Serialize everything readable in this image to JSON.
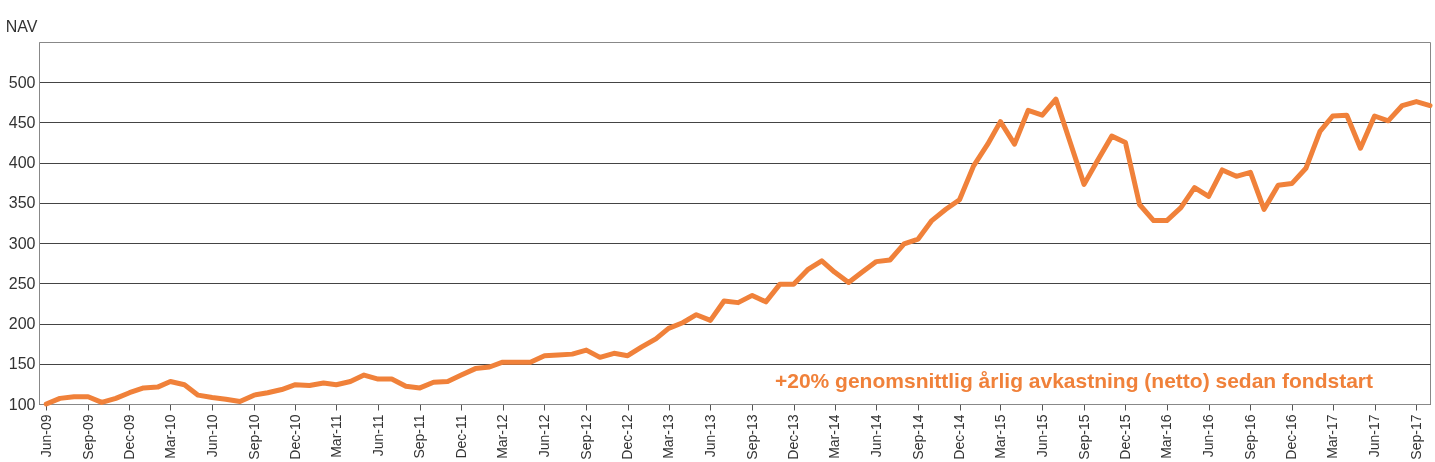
{
  "chart_data": {
    "type": "line",
    "ylabel": "NAV",
    "annotations": [
      "+20% genomsnittlig årlig avkastning (netto) sedan fondstart"
    ],
    "x": [
      "2009-06",
      "2009-07",
      "2009-08",
      "2009-09",
      "2009-10",
      "2009-11",
      "2009-12",
      "2010-01",
      "2010-02",
      "2010-03",
      "2010-04",
      "2010-05",
      "2010-06",
      "2010-07",
      "2010-08",
      "2010-09",
      "2010-10",
      "2010-11",
      "2010-12",
      "2011-01",
      "2011-02",
      "2011-03",
      "2011-04",
      "2011-05",
      "2011-06",
      "2011-07",
      "2011-08",
      "2011-09",
      "2011-10",
      "2011-11",
      "2011-12",
      "2012-01",
      "2012-02",
      "2012-03",
      "2012-04",
      "2012-05",
      "2012-06",
      "2012-07",
      "2012-08",
      "2012-09",
      "2012-10",
      "2012-11",
      "2012-12",
      "2013-01",
      "2013-02",
      "2013-03",
      "2013-04",
      "2013-05",
      "2013-06",
      "2013-07",
      "2013-08",
      "2013-09",
      "2013-10",
      "2013-11",
      "2013-12",
      "2014-01",
      "2014-02",
      "2014-03",
      "2014-04",
      "2014-05",
      "2014-06",
      "2014-07",
      "2014-08",
      "2014-09",
      "2014-10",
      "2014-11",
      "2014-12",
      "2015-01",
      "2015-02",
      "2015-03",
      "2015-04",
      "2015-05",
      "2015-06",
      "2015-07",
      "2015-08",
      "2015-09",
      "2015-10",
      "2015-11",
      "2015-12",
      "2016-01",
      "2016-02",
      "2016-03",
      "2016-04",
      "2016-05",
      "2016-06",
      "2016-07",
      "2016-08",
      "2016-09",
      "2016-10",
      "2016-11",
      "2016-12",
      "2017-01",
      "2017-02",
      "2017-03",
      "2017-04",
      "2017-05",
      "2017-06",
      "2017-07",
      "2017-08",
      "2017-09",
      "2017-10"
    ],
    "series": [
      {
        "color": "#f0813a",
        "values": [
          100,
          107,
          109,
          109,
          102,
          107,
          114,
          120,
          121,
          128,
          124,
          111,
          108,
          106,
          103,
          111,
          114,
          118,
          124,
          123,
          126,
          124,
          128,
          136,
          131,
          131,
          122,
          120,
          127,
          128,
          136,
          144,
          146,
          152,
          152,
          152,
          160,
          161,
          162,
          167,
          158,
          163,
          160,
          171,
          181,
          194,
          201,
          211,
          204,
          228,
          226,
          235,
          227,
          249,
          249,
          267,
          278,
          264,
          251,
          264,
          277,
          279,
          299,
          305,
          328,
          342,
          354,
          396,
          423,
          451,
          423,
          465,
          459,
          479,
          426,
          373,
          403,
          433,
          425,
          348,
          328,
          328,
          344,
          369,
          358,
          391,
          383,
          388,
          342,
          372,
          374,
          393,
          439,
          458,
          459,
          418,
          458,
          452,
          471,
          476,
          471
        ]
      }
    ],
    "xlim": [
      "2009-05-16",
      "2017-10-01"
    ],
    "xticks": [
      {
        "value": "2009-06",
        "label": "Jun-09"
      },
      {
        "value": "2009-09",
        "label": "Sep-09"
      },
      {
        "value": "2009-12",
        "label": "Dec-09"
      },
      {
        "value": "2010-03",
        "label": "Mar-10"
      },
      {
        "value": "2010-06",
        "label": "Jun-10"
      },
      {
        "value": "2010-09",
        "label": "Sep-10"
      },
      {
        "value": "2010-12",
        "label": "Dec-10"
      },
      {
        "value": "2011-03",
        "label": "Mar-11"
      },
      {
        "value": "2011-06",
        "label": "Jun-11"
      },
      {
        "value": "2011-09",
        "label": "Sep-11"
      },
      {
        "value": "2011-12",
        "label": "Dec-11"
      },
      {
        "value": "2012-03",
        "label": "Mar-12"
      },
      {
        "value": "2012-06",
        "label": "Jun-12"
      },
      {
        "value": "2012-09",
        "label": "Sep-12"
      },
      {
        "value": "2012-12",
        "label": "Dec-12"
      },
      {
        "value": "2013-03",
        "label": "Mar-13"
      },
      {
        "value": "2013-06",
        "label": "Jun-13"
      },
      {
        "value": "2013-09",
        "label": "Sep-13"
      },
      {
        "value": "2013-12",
        "label": "Dec-13"
      },
      {
        "value": "2014-03",
        "label": "Mar-14"
      },
      {
        "value": "2014-06",
        "label": "Jun-14"
      },
      {
        "value": "2014-09",
        "label": "Sep-14"
      },
      {
        "value": "2014-12",
        "label": "Dec-14"
      },
      {
        "value": "2015-03",
        "label": "Mar-15"
      },
      {
        "value": "2015-06",
        "label": "Jun-15"
      },
      {
        "value": "2015-09",
        "label": "Sep-15"
      },
      {
        "value": "2015-12",
        "label": "Dec-15"
      },
      {
        "value": "2016-03",
        "label": "Mar-16"
      },
      {
        "value": "2016-06",
        "label": "Jun-16"
      },
      {
        "value": "2016-09",
        "label": "Sep-16"
      },
      {
        "value": "2016-12",
        "label": "Dec-16"
      },
      {
        "value": "2017-03",
        "label": "Mar-17"
      },
      {
        "value": "2017-06",
        "label": "Jun-17"
      },
      {
        "value": "2017-09",
        "label": "Sep-17"
      }
    ],
    "ylim": [
      100,
      550
    ],
    "yticks": [
      100,
      150,
      200,
      250,
      300,
      350,
      400,
      450,
      500
    ],
    "grid": "y",
    "legend": false,
    "marker": "none",
    "line_style": "solid"
  }
}
